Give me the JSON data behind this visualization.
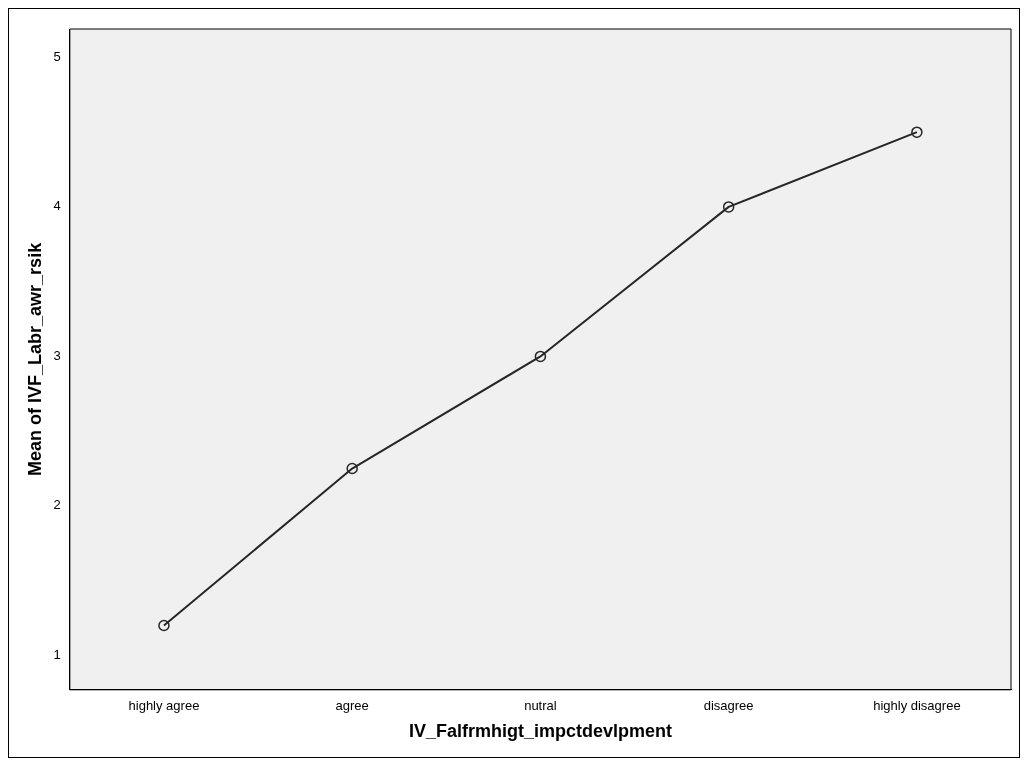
{
  "chart_data": {
    "type": "line",
    "xlabel": "IV_Falfrmhigt_impctdevlpment",
    "ylabel": "Mean of IVF_Labr_awr_rsik",
    "categories": [
      "highly agree",
      "agree",
      "nutral",
      "disagree",
      "highly disagree"
    ],
    "series": [
      {
        "color": "#262626",
        "values": [
          1.2,
          2.25,
          3,
          4,
          4.5
        ]
      }
    ],
    "ylim": [
      0.77,
      5.19
    ],
    "yticks": [
      1,
      2,
      3,
      4,
      5
    ],
    "grid": false,
    "legend": false,
    "marker": "circle",
    "line_style": "solid"
  }
}
